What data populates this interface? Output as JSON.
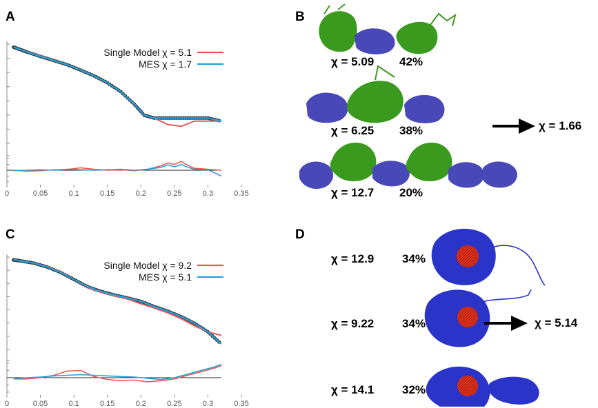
{
  "panels": {
    "a": "A",
    "b": "B",
    "c": "C",
    "d": "D"
  },
  "colors": {
    "single_model": "#e8585a",
    "mes": "#2a9fd6",
    "experimental": "#333333",
    "protein_green": "#3a9a1e",
    "protein_blue": "#4848b8",
    "rna_red": "#e0321c",
    "arrow": "#000000"
  },
  "chart_data": [
    {
      "panel": "A",
      "type": "line",
      "title": "",
      "xlabel": "",
      "ylabel": "",
      "x_ticks": [
        "0",
        "0.05",
        "0.1",
        "0.15",
        "0.2",
        "0.25",
        "0.3",
        "0.35"
      ],
      "xlim": [
        0,
        0.35
      ],
      "log_y": true,
      "legend_position": "top-right",
      "series": [
        {
          "name": "Single Model χ = 5.1",
          "color": "#e8585a",
          "x": [
            0.01,
            0.02,
            0.03,
            0.05,
            0.07,
            0.09,
            0.11,
            0.13,
            0.15,
            0.17,
            0.19,
            0.205,
            0.22,
            0.24,
            0.26,
            0.28,
            0.3,
            0.32
          ],
          "y": [
            1.0,
            0.93,
            0.87,
            0.76,
            0.66,
            0.58,
            0.49,
            0.41,
            0.33,
            0.25,
            0.17,
            0.12,
            0.11,
            0.09,
            0.085,
            0.1,
            0.1,
            0.1
          ]
        },
        {
          "name": "MES χ = 1.7",
          "color": "#2a9fd6",
          "x": [
            0.01,
            0.02,
            0.03,
            0.05,
            0.07,
            0.09,
            0.11,
            0.13,
            0.15,
            0.17,
            0.19,
            0.205,
            0.22,
            0.24,
            0.26,
            0.28,
            0.3,
            0.32
          ],
          "y": [
            1.0,
            0.93,
            0.86,
            0.75,
            0.66,
            0.58,
            0.49,
            0.41,
            0.33,
            0.25,
            0.17,
            0.12,
            0.11,
            0.11,
            0.11,
            0.11,
            0.11,
            0.1
          ]
        }
      ],
      "residuals": [
        {
          "name": "Single Model",
          "x": [
            0.01,
            0.03,
            0.05,
            0.07,
            0.09,
            0.11,
            0.13,
            0.15,
            0.17,
            0.19,
            0.21,
            0.23,
            0.24,
            0.25,
            0.26,
            0.27,
            0.28,
            0.3,
            0.32
          ],
          "y": [
            0.0,
            -0.1,
            -0.05,
            0.05,
            0.08,
            0.25,
            0.1,
            0.0,
            0.05,
            -0.05,
            0.1,
            0.45,
            0.75,
            0.6,
            0.9,
            0.5,
            0.2,
            0.1,
            0.0
          ]
        },
        {
          "name": "MES",
          "x": [
            0.01,
            0.03,
            0.05,
            0.07,
            0.09,
            0.11,
            0.13,
            0.15,
            0.17,
            0.19,
            0.21,
            0.23,
            0.24,
            0.25,
            0.26,
            0.27,
            0.28,
            0.3,
            0.32
          ],
          "y": [
            -0.05,
            0.0,
            0.05,
            0.0,
            0.1,
            0.05,
            0.0,
            0.05,
            0.1,
            0.0,
            0.1,
            0.3,
            0.55,
            0.35,
            0.6,
            0.3,
            0.1,
            0.05,
            -0.6
          ]
        }
      ]
    },
    {
      "panel": "C",
      "type": "line",
      "title": "",
      "xlabel": "",
      "ylabel": "",
      "x_ticks": [
        "0",
        "0.05",
        "0.1",
        "0.15",
        "0.2",
        "0.25",
        "0.3",
        "0.35"
      ],
      "xlim": [
        0,
        0.35
      ],
      "log_y": true,
      "legend_position": "top-right",
      "series": [
        {
          "name": "Single Model χ = 9.2",
          "color": "#e8585a",
          "x": [
            0.01,
            0.02,
            0.04,
            0.06,
            0.08,
            0.1,
            0.12,
            0.14,
            0.16,
            0.18,
            0.2,
            0.22,
            0.24,
            0.26,
            0.28,
            0.3,
            0.32
          ],
          "y": [
            1.0,
            0.97,
            0.9,
            0.8,
            0.68,
            0.52,
            0.4,
            0.34,
            0.3,
            0.27,
            0.23,
            0.2,
            0.17,
            0.14,
            0.11,
            0.09,
            0.08
          ]
        },
        {
          "name": "MES χ = 5.1",
          "color": "#2a9fd6",
          "x": [
            0.01,
            0.02,
            0.04,
            0.06,
            0.08,
            0.1,
            0.12,
            0.14,
            0.16,
            0.18,
            0.2,
            0.22,
            0.24,
            0.26,
            0.28,
            0.3,
            0.32
          ],
          "y": [
            1.0,
            0.97,
            0.9,
            0.79,
            0.66,
            0.52,
            0.41,
            0.35,
            0.31,
            0.28,
            0.25,
            0.21,
            0.18,
            0.15,
            0.12,
            0.09,
            0.06
          ]
        }
      ],
      "residuals": [
        {
          "name": "Single Model",
          "x": [
            0.01,
            0.03,
            0.05,
            0.07,
            0.09,
            0.11,
            0.13,
            0.15,
            0.17,
            0.19,
            0.21,
            0.23,
            0.25,
            0.27,
            0.29,
            0.31,
            0.32
          ],
          "y": [
            -0.1,
            -0.1,
            0.0,
            0.2,
            0.55,
            0.6,
            0.1,
            -0.15,
            -0.25,
            -0.2,
            -0.35,
            -0.25,
            -0.1,
            0.2,
            0.5,
            0.8,
            1.0
          ]
        },
        {
          "name": "MES",
          "x": [
            0.01,
            0.03,
            0.05,
            0.07,
            0.09,
            0.11,
            0.13,
            0.15,
            0.17,
            0.19,
            0.21,
            0.23,
            0.25,
            0.27,
            0.29,
            0.31,
            0.32
          ],
          "y": [
            -0.1,
            0.0,
            0.05,
            0.15,
            0.2,
            0.25,
            0.2,
            0.15,
            0.1,
            0.05,
            -0.05,
            -0.15,
            0.0,
            0.3,
            0.6,
            0.9,
            1.1
          ]
        }
      ]
    }
  ],
  "panel_b": {
    "rows": [
      {
        "chi": "χ = 5.09",
        "pct": "42%"
      },
      {
        "chi": "χ = 6.25",
        "pct": "38%"
      },
      {
        "chi": "χ = 12.7",
        "pct": "20%"
      }
    ],
    "result": "χ = 1.66"
  },
  "panel_d": {
    "rows": [
      {
        "chi": "χ = 12.9",
        "pct": "34%"
      },
      {
        "chi": "χ = 9.22",
        "pct": "34%"
      },
      {
        "chi": "χ = 14.1",
        "pct": "32%"
      }
    ],
    "result": "χ = 5.14"
  }
}
